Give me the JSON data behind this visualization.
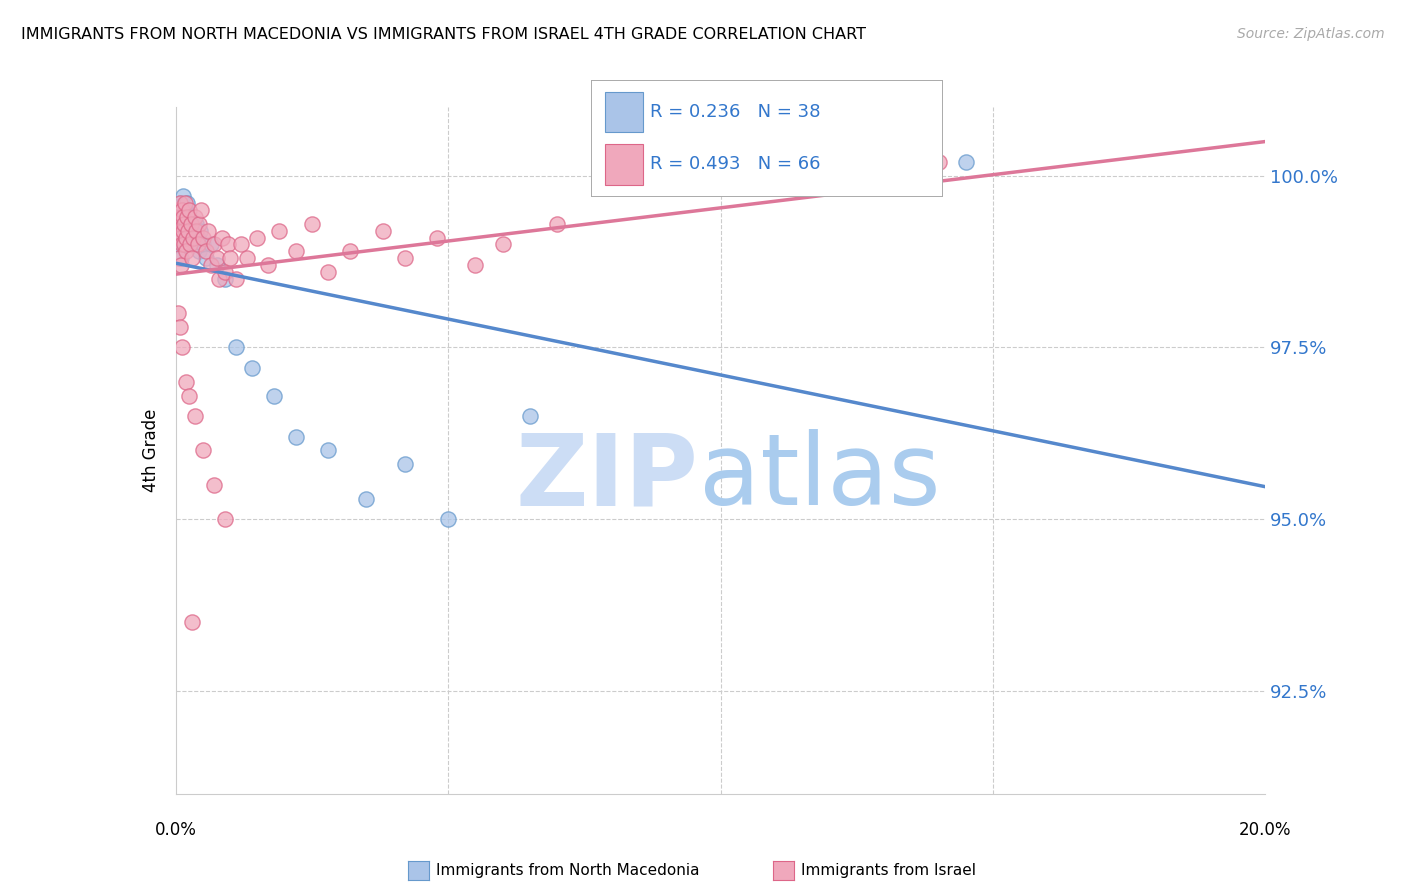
{
  "title": "IMMIGRANTS FROM NORTH MACEDONIA VS IMMIGRANTS FROM ISRAEL 4TH GRADE CORRELATION CHART",
  "source": "Source: ZipAtlas.com",
  "ylabel": "4th Grade",
  "yticks": [
    92.5,
    95.0,
    97.5,
    100.0
  ],
  "ytick_labels": [
    "92.5%",
    "95.0%",
    "97.5%",
    "100.0%"
  ],
  "xmin": 0.0,
  "xmax": 20.0,
  "ymin": 91.0,
  "ymax": 101.0,
  "legend_R_mac": "R = 0.236",
  "legend_N_mac": "N = 38",
  "legend_R_isr": "R = 0.493",
  "legend_N_isr": "N = 66",
  "color_mac": "#aac4e8",
  "color_isr": "#f0a8bc",
  "color_mac_edge": "#6699cc",
  "color_isr_edge": "#dd6688",
  "trendline_mac_color": "#5588cc",
  "trendline_isr_color": "#dd7799",
  "mac_x": [
    0.05,
    0.07,
    0.08,
    0.09,
    0.1,
    0.1,
    0.12,
    0.13,
    0.14,
    0.15,
    0.16,
    0.17,
    0.18,
    0.2,
    0.22,
    0.25,
    0.28,
    0.3,
    0.33,
    0.38,
    0.4,
    0.42,
    0.45,
    0.5,
    0.55,
    0.65,
    0.75,
    0.9,
    1.1,
    1.4,
    1.8,
    2.2,
    2.8,
    3.5,
    4.2,
    5.0,
    6.5,
    14.5
  ],
  "mac_y": [
    99.0,
    99.4,
    99.6,
    99.2,
    99.5,
    98.8,
    99.3,
    99.7,
    99.1,
    99.4,
    99.0,
    99.5,
    99.2,
    99.6,
    99.3,
    99.4,
    99.1,
    99.2,
    99.0,
    99.3,
    99.1,
    98.9,
    99.2,
    99.0,
    98.8,
    99.0,
    98.7,
    98.5,
    97.5,
    97.2,
    96.8,
    96.2,
    96.0,
    95.3,
    95.8,
    95.0,
    96.5,
    100.2
  ],
  "isr_x": [
    0.04,
    0.05,
    0.06,
    0.07,
    0.08,
    0.09,
    0.1,
    0.1,
    0.11,
    0.12,
    0.13,
    0.14,
    0.15,
    0.16,
    0.17,
    0.18,
    0.19,
    0.2,
    0.22,
    0.24,
    0.26,
    0.28,
    0.3,
    0.32,
    0.35,
    0.38,
    0.4,
    0.43,
    0.46,
    0.5,
    0.55,
    0.6,
    0.65,
    0.7,
    0.75,
    0.8,
    0.85,
    0.9,
    0.95,
    1.0,
    1.1,
    1.2,
    1.3,
    1.5,
    1.7,
    1.9,
    2.2,
    2.5,
    2.8,
    3.2,
    3.8,
    4.2,
    4.8,
    5.5,
    6.0,
    7.0,
    0.05,
    0.08,
    0.12,
    0.18,
    0.25,
    0.35,
    0.5,
    0.7,
    0.9,
    14.0
  ],
  "isr_y": [
    99.2,
    99.5,
    98.8,
    99.3,
    99.6,
    99.1,
    99.4,
    98.7,
    99.0,
    99.5,
    99.2,
    99.4,
    99.0,
    99.3,
    99.6,
    99.1,
    98.9,
    99.4,
    99.2,
    99.5,
    99.0,
    99.3,
    98.8,
    99.1,
    99.4,
    99.2,
    99.0,
    99.3,
    99.5,
    99.1,
    98.9,
    99.2,
    98.7,
    99.0,
    98.8,
    98.5,
    99.1,
    98.6,
    99.0,
    98.8,
    98.5,
    99.0,
    98.8,
    99.1,
    98.7,
    99.2,
    98.9,
    99.3,
    98.6,
    98.9,
    99.2,
    98.8,
    99.1,
    98.7,
    99.0,
    99.3,
    98.0,
    97.8,
    97.5,
    97.0,
    96.8,
    96.5,
    96.0,
    95.5,
    95.0,
    100.2
  ],
  "isr_outlier_x": [
    0.3
  ],
  "isr_outlier_y": [
    93.5
  ]
}
